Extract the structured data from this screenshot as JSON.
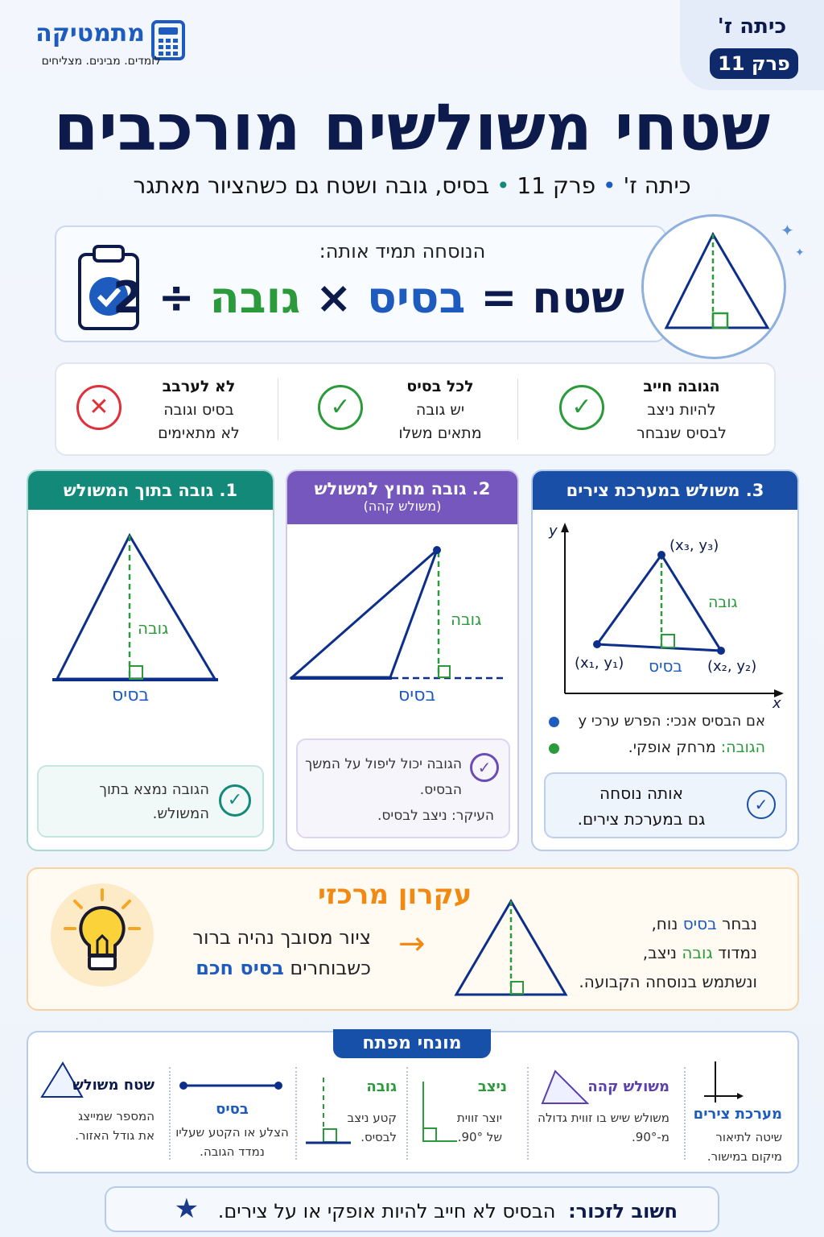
{
  "brand": {
    "name": "מתמטיקה",
    "tagline": "לומדים. מבינים. מצליחים",
    "icon": "calculator-icon"
  },
  "corner": {
    "grade": "כיתה ז'",
    "chapter": "פרק 11"
  },
  "title": "שטחי משולשים מורכבים",
  "subtitle": {
    "grade": "כיתה ז'",
    "chapter": "פרק 11",
    "topic": "בסיס, גובה ושטח גם כשהציור מאתגר"
  },
  "formula": {
    "intro": "הנוסחה תמיד אותה:",
    "area": "שטח",
    "eq": "=",
    "base": "בסיס",
    "times": "×",
    "height": "גובה",
    "div": "÷",
    "two": "2"
  },
  "rules": [
    {
      "l1": "הגובה חייב",
      "l2": "להיות ניצב",
      "l3": "לבסיס שנבחר",
      "icon": "check-icon"
    },
    {
      "l1": "לכל בסיס",
      "l2": "יש גובה",
      "l3": "מתאים משלו",
      "icon": "check-icon"
    },
    {
      "l1": "לא לערבב",
      "l2": "בסיס וגובה",
      "l3": "לא מתאימים",
      "icon": "x-icon"
    }
  ],
  "cards": [
    {
      "title": "1. גובה בתוך המשולש",
      "height": "גובה",
      "base": "בסיס",
      "note": "הגובה נמצא בתוך המשולש.",
      "color": "#13897a"
    },
    {
      "title": "2. גובה מחוץ למשולש",
      "subtitle": "(משולש קהה)",
      "height": "גובה",
      "base": "בסיס",
      "note1": "הגובה יכול ליפול על המשך הבסיס.",
      "note2": "העיקר: ניצב לבסיס.",
      "color": "#7557bd"
    },
    {
      "title": "3. משולש במערכת צירים",
      "height": "גובה",
      "base": "בסיס",
      "p1": "(x₁, y₁)",
      "p2": "(x₂, y₂)",
      "p3": "(x₃, y₃)",
      "xaxis": "x",
      "yaxis": "y",
      "b1": "אם הבסיס אנכי: הפרש ערכי y",
      "b2label": "הגובה:",
      "b2": "מרחק אופקי.",
      "n1": "אותה נוסחה",
      "n2": "גם במערכת צירים.",
      "color": "#1a4fa8"
    }
  ],
  "principle": {
    "title": "עקרון מרכזי",
    "l1": "ציור מסובך נהיה ברור",
    "l2a": "כשבוחרים",
    "l2b": "בסיס חכם",
    "r1a": "נבחר",
    "r1b": "בסיס",
    "r1c": "נוח,",
    "r2a": "נמדוד",
    "r2b": "גובה",
    "r2c": "ניצב,",
    "r3": "ונשתמש בנוסחה הקבועה."
  },
  "glossary": {
    "title": "מונחי מפתח",
    "items": [
      {
        "term": "מערכת צירים",
        "desc": "שיטה לתיאור מיקום במישור."
      },
      {
        "term": "משולש קהה",
        "desc": "משולש שיש בו זווית גדולה מ-90°."
      },
      {
        "term": "ניצב",
        "desc": "יוצר זווית של 90°."
      },
      {
        "term": "גובה",
        "desc": "קטע ניצב לבסיס."
      },
      {
        "term": "בסיס",
        "desc": "הצלע או הקטע שעליו נמדד הגובה."
      },
      {
        "term": "שטח משולש",
        "desc": "המספר שמייצג את גודל האזור."
      }
    ]
  },
  "remember": {
    "label": "חשוב לזכור:",
    "text": "הבסיס לא חייב להיות אופקי או על צירים."
  },
  "colors": {
    "navy": "#0d1b4c",
    "blue": "#1d5bbf",
    "green": "#2a9a3a",
    "purple": "#6a4cb4",
    "orange": "#f08a12",
    "red": "#e0303a"
  }
}
